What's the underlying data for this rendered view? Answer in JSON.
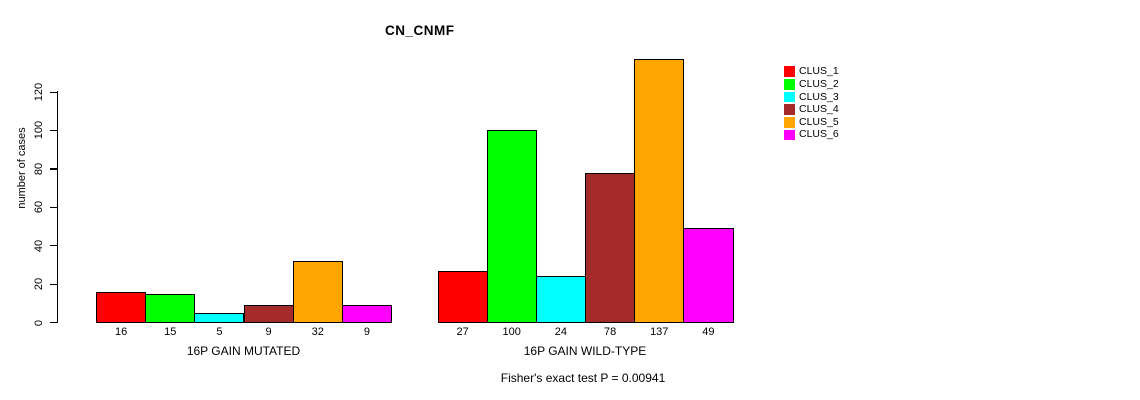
{
  "title": "CN_CNMF",
  "caption": "Fisher's exact test P = 0.00941",
  "legend": {
    "items": [
      {
        "label": "CLUS_1",
        "color": "#FF0000"
      },
      {
        "label": "CLUS_2",
        "color": "#00FF00"
      },
      {
        "label": "CLUS_3",
        "color": "#00FFFF"
      },
      {
        "label": "CLUS_4",
        "color": "#A52A2A"
      },
      {
        "label": "CLUS_5",
        "color": "#FFA500"
      },
      {
        "label": "CLUS_6",
        "color": "#FF00FF"
      }
    ]
  },
  "chart_data": {
    "type": "bar",
    "title": "CN_CNMF",
    "xlabel": "",
    "ylabel": "number of cases",
    "ylim": [
      0,
      137
    ],
    "yticks": [
      0,
      20,
      40,
      60,
      80,
      100,
      120
    ],
    "grid": false,
    "legend_position": "right",
    "bar_value_labels": true,
    "categories": [
      "16P GAIN MUTATED",
      "16P GAIN WILD-TYPE"
    ],
    "series": [
      {
        "name": "CLUS_1",
        "color": "#FF0000",
        "values": [
          16,
          27
        ]
      },
      {
        "name": "CLUS_2",
        "color": "#00FF00",
        "values": [
          15,
          100
        ]
      },
      {
        "name": "CLUS_3",
        "color": "#00FFFF",
        "values": [
          5,
          24
        ]
      },
      {
        "name": "CLUS_4",
        "color": "#A52A2A",
        "values": [
          9,
          78
        ]
      },
      {
        "name": "CLUS_5",
        "color": "#FFA500",
        "values": [
          32,
          137
        ]
      },
      {
        "name": "CLUS_6",
        "color": "#FF00FF",
        "values": [
          9,
          49
        ]
      }
    ],
    "groups": [
      {
        "label": "16P GAIN MUTATED",
        "values": [
          16,
          15,
          5,
          9,
          32,
          9
        ]
      },
      {
        "label": "16P GAIN WILD-TYPE",
        "values": [
          27,
          100,
          24,
          78,
          137,
          49
        ]
      }
    ],
    "annotation": "Fisher's exact test P = 0.00941"
  }
}
